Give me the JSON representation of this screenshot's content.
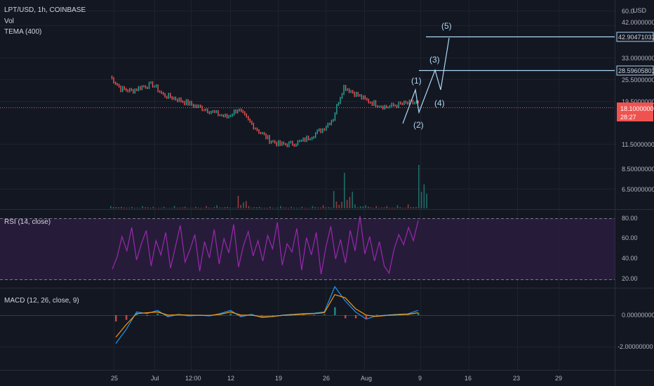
{
  "header": {
    "symbol": "LPT/USD, 1h, COINBASE",
    "vol_label": "Vol",
    "tema_label": "TEMA (400)",
    "currency": "USD"
  },
  "colors": {
    "background": "#131722",
    "grid": "#1e222d",
    "text": "#b2b5be",
    "up": "#26a69a",
    "down": "#ef5350",
    "price_line": "#ef5350",
    "target": "#aed6f1",
    "rsi_line": "#9c27b0",
    "rsi_band": "#2a1d3d",
    "macd_line": "#2196f3",
    "signal_line": "#ff9800"
  },
  "chart_data": [
    {
      "type": "line",
      "pane": "price",
      "description_words": "candlestick price with volume",
      "x_ticks": [
        "25",
        "Jul",
        "12:00",
        "12",
        "19",
        "26",
        "Aug",
        "9",
        "16",
        "23",
        "29"
      ],
      "y_ticks": [
        "60.0",
        "42.00000000",
        "33.00000000",
        "25.50000000",
        "19.50000000",
        "11.50000000",
        "8.50000000",
        "6.50000000"
      ],
      "price_series": [
        24.0,
        21.0,
        20.5,
        21.5,
        22.0,
        19.6,
        19.0,
        18.2,
        17.4,
        16.8,
        16.0,
        15.4,
        16.8,
        14.8,
        13.2,
        12.0,
        11.4,
        11.5,
        11.8,
        12.6,
        13.5,
        15.2,
        21.5,
        20.0,
        18.6,
        17.8,
        17.2,
        17.6,
        17.9,
        18.1
      ],
      "volume_series": [
        0.3,
        0.2,
        0.2,
        0.3,
        0.2,
        0.2,
        0.3,
        0.2,
        0.2,
        0.3,
        0.4,
        0.2,
        1.6,
        0.3,
        0.2,
        0.2,
        0.3,
        0.2,
        0.2,
        0.3,
        0.4,
        2.2,
        4.5,
        0.5,
        0.4,
        0.3,
        0.3,
        0.4,
        0.5,
        5.5
      ],
      "current_price": "18.10000000",
      "countdown": "28:27",
      "target_levels": [
        {
          "value": "42.90471031"
        },
        {
          "value": "28.59605801"
        }
      ],
      "wave_labels": [
        "(1)",
        "(2)",
        "(3)",
        "(4)",
        "(5)"
      ]
    },
    {
      "type": "line",
      "pane": "rsi",
      "title": "RSI (14, close)",
      "y_ticks": [
        "80.00",
        "60.00",
        "40.00",
        "20.00"
      ],
      "ylim": [
        15,
        85
      ],
      "series": [
        {
          "values": [
            30,
            42,
            62,
            48,
            71,
            39,
            55,
            68,
            33,
            58,
            44,
            66,
            31,
            52,
            73,
            37,
            49,
            64,
            28,
            57,
            41,
            69,
            35,
            60,
            46,
            74,
            32,
            53,
            67,
            43,
            58,
            38,
            63,
            50,
            76,
            34,
            55,
            47,
            70,
            29,
            61,
            44,
            66,
            25,
            52,
            72,
            40,
            59,
            36,
            68,
            48,
            82,
            45,
            62,
            38,
            57,
            33,
            26,
            49,
            64,
            54,
            71,
            58,
            78
          ]
        }
      ]
    },
    {
      "type": "line",
      "pane": "macd",
      "title": "MACD (12, 26, close, 9)",
      "y_ticks": [
        "0.00000000",
        "-2.00000000"
      ],
      "ylim": [
        -2.7,
        1.5
      ],
      "series": [
        {
          "values": [
            -1.8,
            -0.9,
            0.2,
            0.1,
            0.3,
            -0.1,
            0.05,
            -0.05,
            0.0,
            -0.05,
            0.1,
            0.3,
            -0.1,
            0.05,
            -0.15,
            -0.1,
            0.0,
            0.05,
            0.1,
            0.12,
            0.2,
            1.8,
            0.9,
            0.2,
            -0.25,
            -0.05,
            0.0,
            0.05,
            0.08,
            0.3
          ]
        },
        {
          "values": [
            -1.4,
            -0.6,
            0.1,
            0.15,
            0.2,
            0.0,
            0.02,
            0.0,
            -0.02,
            -0.02,
            0.05,
            0.2,
            0.0,
            0.0,
            -0.1,
            -0.08,
            -0.02,
            0.02,
            0.06,
            0.1,
            0.15,
            1.3,
            1.1,
            0.4,
            0.0,
            -0.08,
            -0.02,
            0.02,
            0.05,
            0.15
          ]
        }
      ]
    }
  ]
}
